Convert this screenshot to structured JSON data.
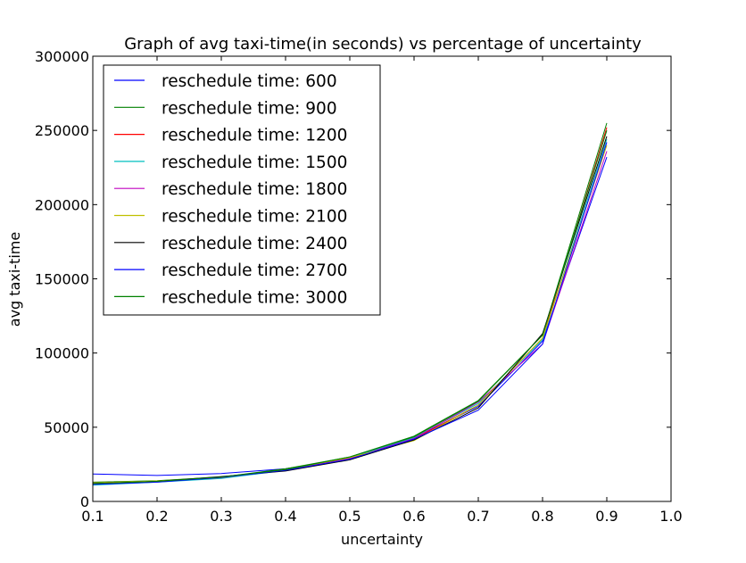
{
  "chart_data": {
    "type": "line",
    "title": "Graph of avg taxi-time(in seconds) vs percentage of uncertainty",
    "xlabel": "uncertainty",
    "ylabel": "avg taxi-time",
    "xlim": [
      0.1,
      1.0
    ],
    "ylim": [
      0,
      300000
    ],
    "x_ticks": [
      "0.1",
      "0.2",
      "0.3",
      "0.4",
      "0.5",
      "0.6",
      "0.7",
      "0.8",
      "0.9",
      "1.0"
    ],
    "y_ticks": [
      "0",
      "50000",
      "100000",
      "150000",
      "200000",
      "250000",
      "300000"
    ],
    "grid": false,
    "legend_position": "upper-left",
    "x": [
      0.1,
      0.2,
      0.3,
      0.4,
      0.5,
      0.6,
      0.7,
      0.8,
      0.9
    ],
    "series": [
      {
        "name": "reschedule time: 600",
        "color": "#0000ff",
        "values": [
          18500,
          17500,
          18800,
          22000,
          29000,
          43000,
          64000,
          108000,
          232000
        ]
      },
      {
        "name": "reschedule time: 900",
        "color": "#008000",
        "values": [
          13000,
          14000,
          16500,
          22000,
          30000,
          44000,
          68000,
          112000,
          255000
        ]
      },
      {
        "name": "reschedule time: 1200",
        "color": "#ff0000",
        "values": [
          12500,
          13500,
          16000,
          21000,
          29000,
          42000,
          65000,
          110000,
          252000
        ]
      },
      {
        "name": "reschedule time: 1500",
        "color": "#00bfbf",
        "values": [
          11000,
          13000,
          15500,
          21000,
          29500,
          43000,
          66000,
          109000,
          244000
        ]
      },
      {
        "name": "reschedule time: 1800",
        "color": "#bf00bf",
        "values": [
          12000,
          13500,
          16000,
          21500,
          29000,
          42500,
          67000,
          106000,
          236000
        ]
      },
      {
        "name": "reschedule time: 2100",
        "color": "#bfbf00",
        "values": [
          12500,
          13800,
          16000,
          21500,
          29500,
          41000,
          65000,
          110000,
          240000
        ]
      },
      {
        "name": "reschedule time: 2400",
        "color": "#000000",
        "values": [
          12000,
          13500,
          16800,
          20500,
          28000,
          41500,
          63000,
          113000,
          246000
        ]
      },
      {
        "name": "reschedule time: 2700",
        "color": "#0000ff",
        "values": [
          11500,
          13000,
          16200,
          21000,
          28500,
          42000,
          61500,
          106000,
          242000
        ]
      },
      {
        "name": "reschedule time: 3000",
        "color": "#008000",
        "values": [
          12000,
          13500,
          16500,
          21500,
          30000,
          43500,
          67500,
          112000,
          250000
        ]
      }
    ]
  }
}
